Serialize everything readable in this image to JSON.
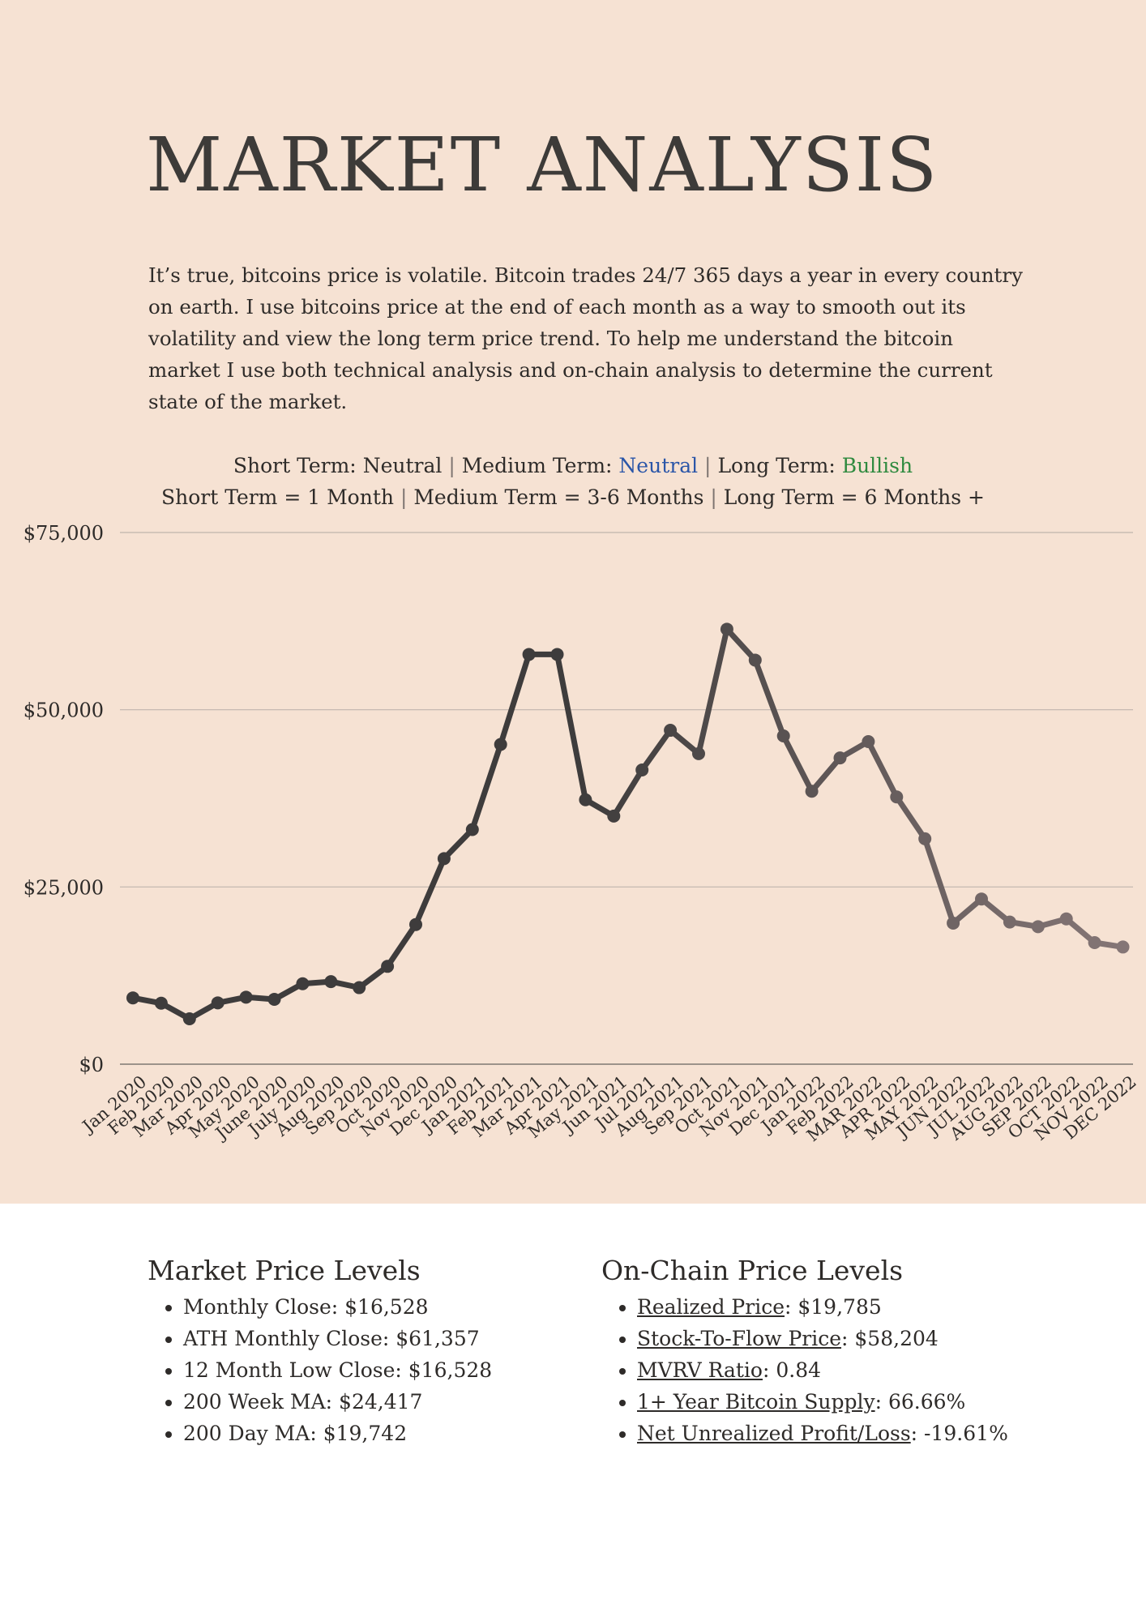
{
  "page": {
    "title": "MARKET ANALYSIS",
    "intro": "It’s true, bitcoins price is volatile. Bitcoin trades 24/7 365 days a year in every country on earth. I use bitcoins price at the end of each month as a way to smooth out its volatility and view the long term price trend. To help me understand the bitcoin market I use both technical analysis and on-chain analysis to determine the current state of the market."
  },
  "outlook": {
    "short_label": "Short Term:",
    "short_value": "Neutral",
    "medium_label": "Medium Term:",
    "medium_value": "Neutral",
    "long_label": "Long Term:",
    "long_value": "Bullish",
    "def_short": "Short Term = 1 Month",
    "def_medium": "Medium Term = 3-6 Months",
    "def_long": "Long Term = 6 Months +",
    "separator": "|",
    "colors": {
      "neutral": "#2b56a8",
      "bullish": "#2f8a3f"
    }
  },
  "chart_data": {
    "type": "line",
    "title": "",
    "xlabel": "",
    "ylabel": "",
    "ylim": [
      0,
      75000
    ],
    "y_ticks": [
      0,
      25000,
      50000,
      75000
    ],
    "y_tick_labels": [
      "$0",
      "$25,000",
      "$50,000",
      "$75,000"
    ],
    "grid": true,
    "line_color_start": "#3e3c3c",
    "line_color_end": "#857676",
    "categories": [
      "Jan 2020",
      "Feb 2020",
      "Mar 2020",
      "Apr 2020",
      "May 2020",
      "June 2020",
      "July 2020",
      "Aug 2020",
      "Sep 2020",
      "Oct 2020",
      "Nov 2020",
      "Dec 2020",
      "Jan 2021",
      "Feb 2021",
      "Mar 2021",
      "Apr 2021",
      "May 2021",
      "Jun 2021",
      "Jul 2021",
      "Aug 2021",
      "Sep 2021",
      "Oct 2021",
      "Nov 2021",
      "Dec 2021",
      "Jan 2022",
      "Feb 2022",
      "MAR 2022",
      "APR 2022",
      "MAY 2022",
      "JUN 2022",
      "JUL 2022",
      "AUG 2022",
      "SEP 2022",
      "OCT 2022",
      "NOV 2022",
      "DEC 2022"
    ],
    "values": [
      9350,
      8600,
      6400,
      8650,
      9450,
      9150,
      11350,
      11650,
      10800,
      13800,
      19700,
      29000,
      33100,
      45100,
      57800,
      57800,
      37300,
      35000,
      41500,
      47100,
      43800,
      61357,
      57000,
      46300,
      38500,
      43200,
      45500,
      37700,
      31800,
      19900,
      23300,
      20050,
      19400,
      20500,
      17150,
      16528
    ]
  },
  "market_levels": {
    "title": "Market Price Levels",
    "items": [
      {
        "label": "Monthly Close",
        "value": "$16,528"
      },
      {
        "label": "ATH Monthly Close",
        "value": "$61,357"
      },
      {
        "label": "12 Month Low Close",
        "value": "$16,528"
      },
      {
        "label": "200 Week MA",
        "value": "$24,417"
      },
      {
        "label": "200 Day MA",
        "value": "$19,742"
      }
    ]
  },
  "onchain_levels": {
    "title": "On-Chain Price Levels",
    "items": [
      {
        "label": "Realized Price",
        "value": "$19,785"
      },
      {
        "label": "Stock-To-Flow Price",
        "value": "$58,204"
      },
      {
        "label": "MVRV Ratio",
        "value": "0.84"
      },
      {
        "label": "1+ Year Bitcoin Supply",
        "value": "66.66%"
      },
      {
        "label": "Net Unrealized Profit/Loss",
        "value": "-19.61%"
      }
    ]
  }
}
